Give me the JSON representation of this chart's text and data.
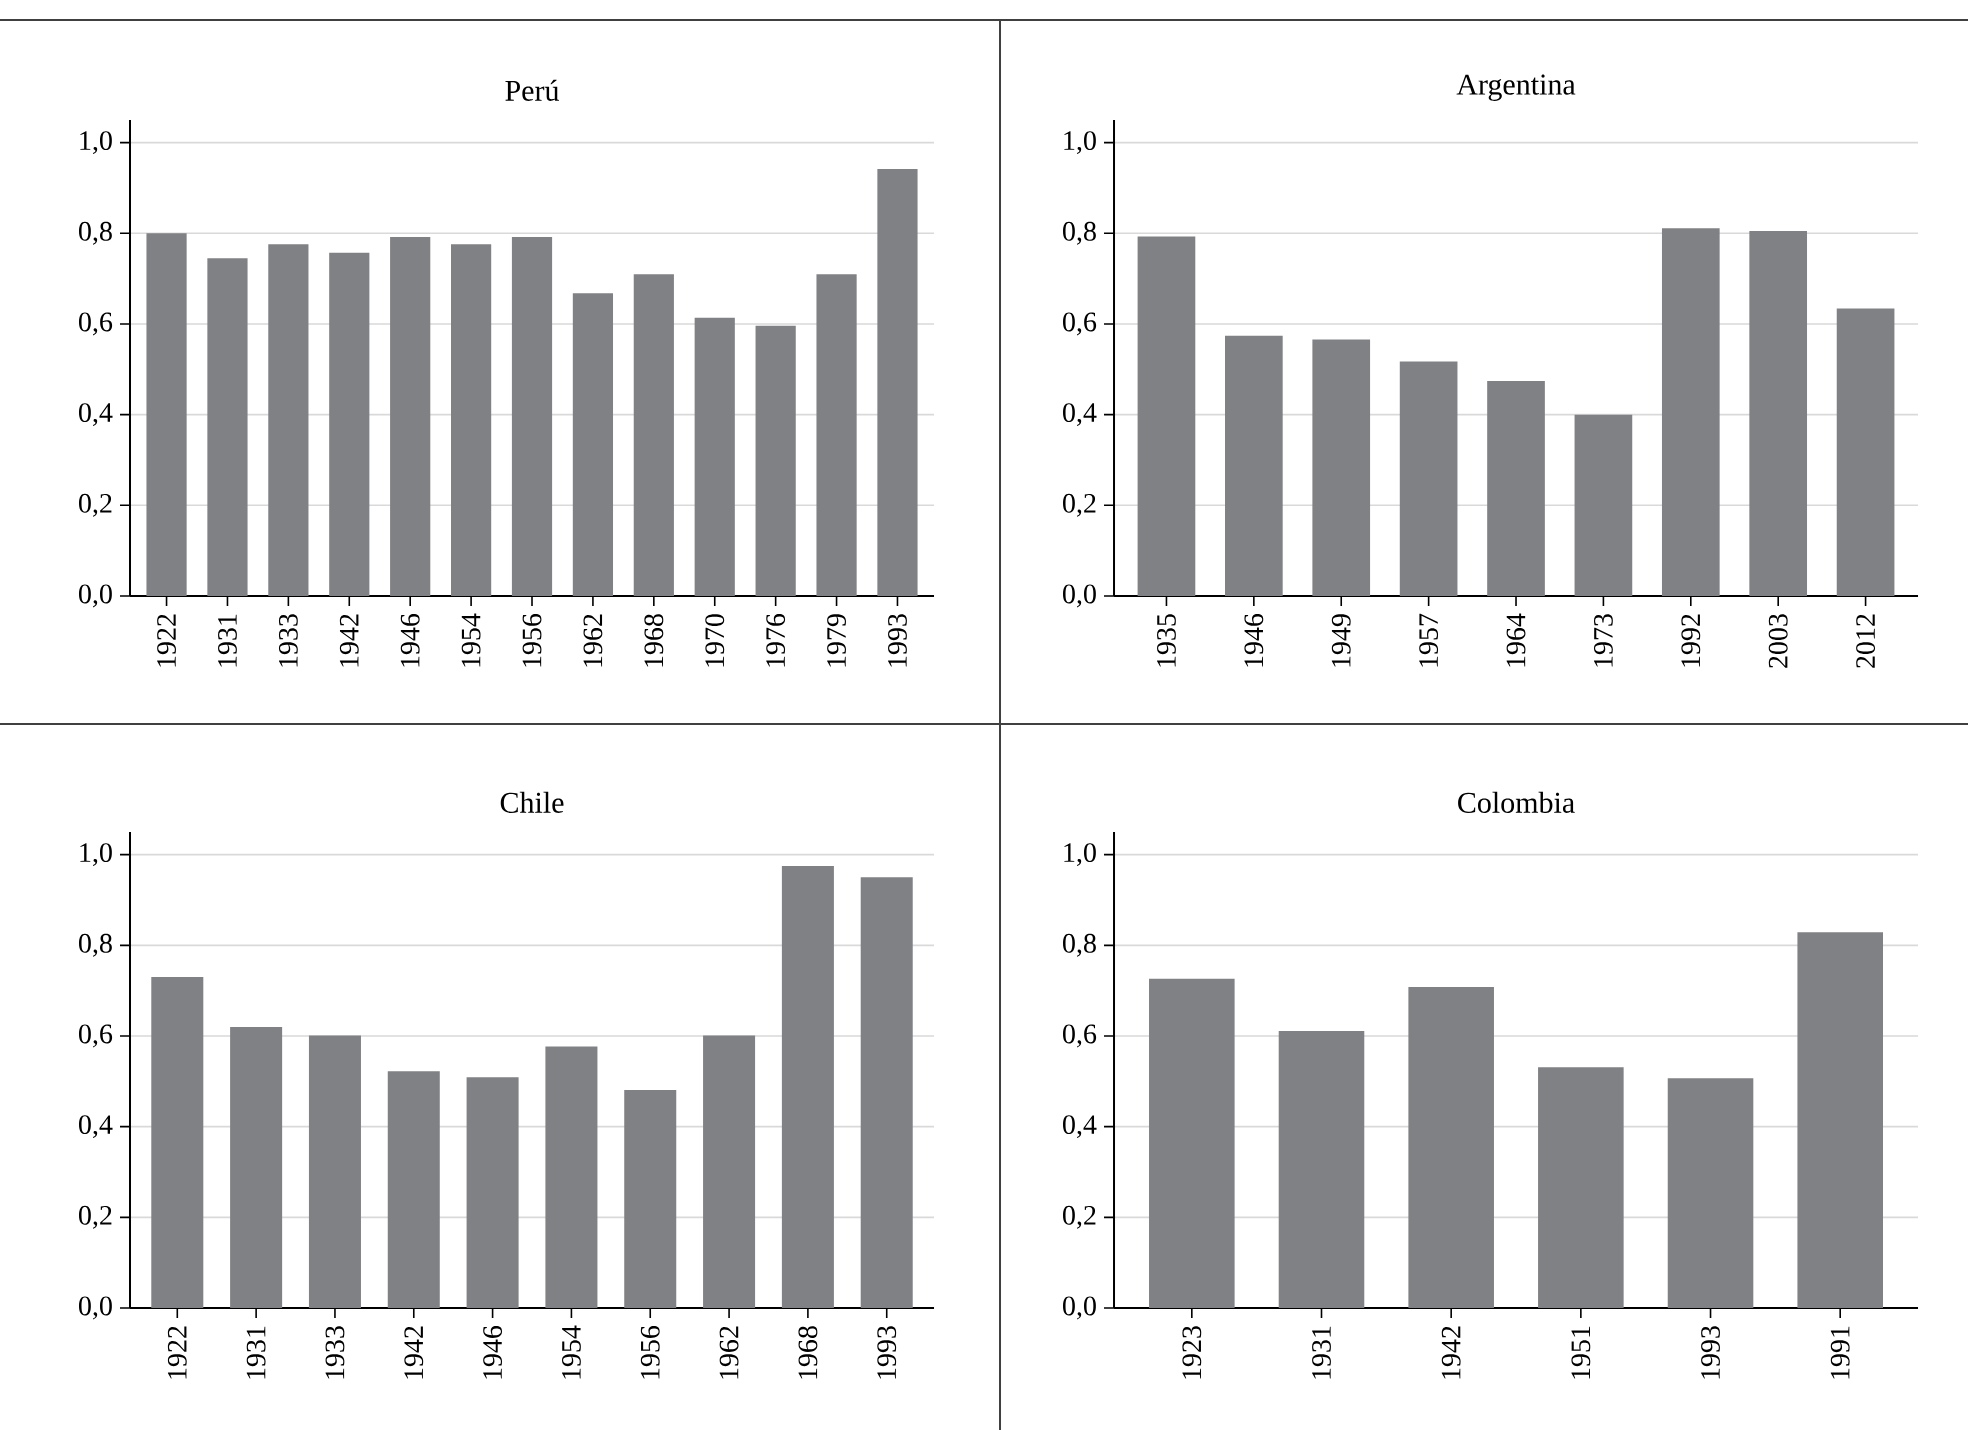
{
  "chart_data": [
    {
      "type": "bar",
      "title": "Perú",
      "categories": [
        "1922",
        "1931",
        "1933",
        "1942",
        "1946",
        "1954",
        "1956",
        "1962",
        "1968",
        "1970",
        "1976",
        "1979",
        "1993"
      ],
      "values": [
        0.8,
        0.745,
        0.776,
        0.757,
        0.792,
        0.776,
        0.792,
        0.668,
        0.71,
        0.614,
        0.596,
        0.71,
        0.942
      ],
      "color": "#808185",
      "ylim": [
        0,
        1.05
      ],
      "yticks": [
        {
          "value": 0,
          "label": "0,0"
        },
        {
          "value": 0.2,
          "label": "0,2"
        },
        {
          "value": 0.4,
          "label": "0,4"
        },
        {
          "value": 0.6,
          "label": "0,6"
        },
        {
          "value": 0.8,
          "label": "0,8"
        },
        {
          "value": 1.0,
          "label": "1,0"
        }
      ],
      "grid": "y"
    },
    {
      "type": "bar",
      "title": "Argentina",
      "categories": [
        "1935",
        "1946",
        "1949",
        "1957",
        "1964",
        "1973",
        "1992",
        "2003",
        "2012"
      ],
      "values": [
        0.793,
        0.574,
        0.566,
        0.517,
        0.474,
        0.4,
        0.811,
        0.805,
        0.634
      ],
      "color": "#808185",
      "ylim": [
        0,
        1.05
      ],
      "yticks": [
        {
          "value": 0,
          "label": "0,0"
        },
        {
          "value": 0.2,
          "label": "0,2"
        },
        {
          "value": 0.4,
          "label": "0,4"
        },
        {
          "value": 0.6,
          "label": "0,6"
        },
        {
          "value": 0.8,
          "label": "0,8"
        },
        {
          "value": 1.0,
          "label": "1,0"
        }
      ],
      "grid": "y"
    },
    {
      "type": "bar",
      "title": "Chile",
      "categories": [
        "1922",
        "1931",
        "1933",
        "1942",
        "1946",
        "1954",
        "1956",
        "1962",
        "1968",
        "1993"
      ],
      "values": [
        0.73,
        0.62,
        0.601,
        0.522,
        0.509,
        0.577,
        0.481,
        0.601,
        0.975,
        0.95
      ],
      "color": "#808185",
      "ylim": [
        0,
        1.05
      ],
      "yticks": [
        {
          "value": 0,
          "label": "0,0"
        },
        {
          "value": 0.2,
          "label": "0,2"
        },
        {
          "value": 0.4,
          "label": "0,4"
        },
        {
          "value": 0.6,
          "label": "0,6"
        },
        {
          "value": 0.8,
          "label": "0,8"
        },
        {
          "value": 1.0,
          "label": "1,0"
        }
      ],
      "grid": "y"
    },
    {
      "type": "bar",
      "title": "Colombia",
      "categories": [
        "1923",
        "1931",
        "1942",
        "1951",
        "1993",
        "1991"
      ],
      "values": [
        0.726,
        0.611,
        0.708,
        0.531,
        0.507,
        0.829
      ],
      "color": "#808185",
      "ylim": [
        0,
        1.05
      ],
      "yticks": [
        {
          "value": 0,
          "label": "0,0"
        },
        {
          "value": 0.2,
          "label": "0,2"
        },
        {
          "value": 0.4,
          "label": "0,4"
        },
        {
          "value": 0.6,
          "label": "0,6"
        },
        {
          "value": 0.8,
          "label": "0,8"
        },
        {
          "value": 1.0,
          "label": "1,0"
        }
      ],
      "grid": "y"
    }
  ]
}
